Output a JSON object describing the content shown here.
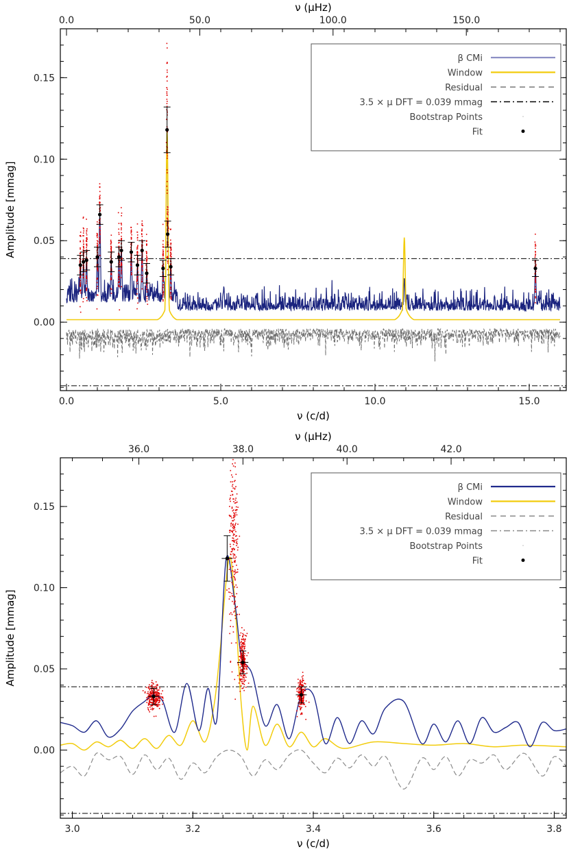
{
  "chart_data": [
    {
      "type": "line",
      "panel": "top",
      "xlabel_bottom": "ν (c/d)",
      "xlabel_top": "ν (μHz)",
      "ylabel": "Amplitude [mmag]",
      "xlim": [
        -0.2,
        16.2
      ],
      "ylim": [
        -0.042,
        0.18
      ],
      "xticks": [
        0.0,
        5.0,
        10.0,
        15.0
      ],
      "xtick_labels": [
        "0.0",
        "5.0",
        "10.0",
        "15.0"
      ],
      "top_ticks_uHz": [
        0.0,
        50.0,
        100.0,
        150.0
      ],
      "top_tick_labels": [
        "0.0",
        "50.0",
        "100.0",
        "150.0"
      ],
      "yticks": [
        0.0,
        0.05,
        0.1,
        0.15
      ],
      "ytick_labels": [
        "0.00",
        "0.05",
        "0.10",
        "0.15"
      ],
      "threshold": 0.039,
      "negative_threshold": -0.039,
      "legend": {
        "position": "top-right",
        "entries": [
          {
            "label": "β CMi",
            "style": "solid",
            "color": "#8c8fc4"
          },
          {
            "label": "Window",
            "style": "solid",
            "color": "#f2cc0c"
          },
          {
            "label": "Residual",
            "style": "dashed",
            "color": "#777777"
          },
          {
            "label": "3.5 × μ DFT = 0.039 mmag",
            "style": "dashdot",
            "color": "#000000"
          },
          {
            "label": "Bootstrap Points",
            "style": "dotted",
            "color": "#bbbbbb"
          },
          {
            "label": "Fit",
            "style": "point",
            "color": "#000000"
          }
        ]
      },
      "spectrum_peaks": [
        {
          "x": 0.45,
          "y": 0.035
        },
        {
          "x": 0.55,
          "y": 0.037
        },
        {
          "x": 0.65,
          "y": 0.038
        },
        {
          "x": 1.0,
          "y": 0.04
        },
        {
          "x": 1.08,
          "y": 0.066
        },
        {
          "x": 1.45,
          "y": 0.037
        },
        {
          "x": 1.7,
          "y": 0.04
        },
        {
          "x": 1.78,
          "y": 0.044
        },
        {
          "x": 2.1,
          "y": 0.043
        },
        {
          "x": 2.3,
          "y": 0.035
        },
        {
          "x": 2.45,
          "y": 0.044
        },
        {
          "x": 2.6,
          "y": 0.03
        },
        {
          "x": 3.13,
          "y": 0.033
        },
        {
          "x": 3.26,
          "y": 0.118
        },
        {
          "x": 3.28,
          "y": 0.054
        },
        {
          "x": 3.38,
          "y": 0.034
        },
        {
          "x": 5.1,
          "y": 0.022
        },
        {
          "x": 10.95,
          "y": 0.027
        },
        {
          "x": 15.2,
          "y": 0.033
        }
      ],
      "window_peaks": [
        {
          "x": 3.26,
          "y": 0.118
        },
        {
          "x": 10.95,
          "y": 0.052
        }
      ],
      "fit_points": [
        {
          "x": 0.45,
          "y": 0.035,
          "err": 0.006
        },
        {
          "x": 0.55,
          "y": 0.037,
          "err": 0.006
        },
        {
          "x": 0.65,
          "y": 0.038,
          "err": 0.006
        },
        {
          "x": 1.0,
          "y": 0.04,
          "err": 0.006
        },
        {
          "x": 1.08,
          "y": 0.066,
          "err": 0.006
        },
        {
          "x": 1.45,
          "y": 0.037,
          "err": 0.006
        },
        {
          "x": 1.7,
          "y": 0.04,
          "err": 0.006
        },
        {
          "x": 1.78,
          "y": 0.044,
          "err": 0.006
        },
        {
          "x": 2.1,
          "y": 0.043,
          "err": 0.006
        },
        {
          "x": 2.3,
          "y": 0.035,
          "err": 0.006
        },
        {
          "x": 2.45,
          "y": 0.044,
          "err": 0.006
        },
        {
          "x": 2.6,
          "y": 0.03,
          "err": 0.006
        },
        {
          "x": 3.13,
          "y": 0.033,
          "err": 0.005
        },
        {
          "x": 3.26,
          "y": 0.118,
          "err": 0.014
        },
        {
          "x": 3.28,
          "y": 0.054,
          "err": 0.008
        },
        {
          "x": 3.38,
          "y": 0.034,
          "err": 0.005
        },
        {
          "x": 15.2,
          "y": 0.033,
          "err": 0.005
        }
      ]
    },
    {
      "type": "line",
      "panel": "bottom",
      "xlabel_bottom": "ν (c/d)",
      "xlabel_top": "ν (μHz)",
      "ylabel": "Amplitude [mmag]",
      "xlim": [
        2.98,
        3.82
      ],
      "ylim": [
        -0.042,
        0.18
      ],
      "xticks": [
        3.0,
        3.2,
        3.4,
        3.6,
        3.8
      ],
      "xtick_labels": [
        "3.0",
        "3.2",
        "3.4",
        "3.6",
        "3.8"
      ],
      "top_ticks_uHz": [
        36.0,
        38.0,
        40.0,
        42.0
      ],
      "top_tick_labels": [
        "36.0",
        "38.0",
        "40.0",
        "42.0"
      ],
      "yticks": [
        0.0,
        0.05,
        0.1,
        0.15
      ],
      "ytick_labels": [
        "0.00",
        "0.05",
        "0.10",
        "0.15"
      ],
      "threshold": 0.039,
      "negative_threshold": -0.039,
      "legend": {
        "position": "top-right",
        "entries": [
          {
            "label": "β CMi",
            "style": "solid",
            "color": "#1f2a8c"
          },
          {
            "label": "Window",
            "style": "solid",
            "color": "#f2cc0c"
          },
          {
            "label": "Residual",
            "style": "dashed",
            "color": "#888888"
          },
          {
            "label": "3.5 × μ DFT = 0.039 mmag",
            "style": "dashdot",
            "color": "#888888"
          },
          {
            "label": "Bootstrap Points",
            "style": "dotted",
            "color": "#bbbbbb"
          },
          {
            "label": "Fit",
            "style": "point",
            "color": "#000000"
          }
        ]
      },
      "spectrum_points": [
        {
          "x": 2.98,
          "y": 0.017
        },
        {
          "x": 3.0,
          "y": 0.015
        },
        {
          "x": 3.02,
          "y": 0.011
        },
        {
          "x": 3.04,
          "y": 0.018
        },
        {
          "x": 3.06,
          "y": 0.008
        },
        {
          "x": 3.08,
          "y": 0.013
        },
        {
          "x": 3.1,
          "y": 0.024
        },
        {
          "x": 3.12,
          "y": 0.03
        },
        {
          "x": 3.135,
          "y": 0.034
        },
        {
          "x": 3.15,
          "y": 0.03
        },
        {
          "x": 3.17,
          "y": 0.011
        },
        {
          "x": 3.19,
          "y": 0.041
        },
        {
          "x": 3.21,
          "y": 0.012
        },
        {
          "x": 3.225,
          "y": 0.038
        },
        {
          "x": 3.24,
          "y": 0.019
        },
        {
          "x": 3.255,
          "y": 0.117
        },
        {
          "x": 3.27,
          "y": 0.09
        },
        {
          "x": 3.28,
          "y": 0.058
        },
        {
          "x": 3.29,
          "y": 0.052
        },
        {
          "x": 3.3,
          "y": 0.045
        },
        {
          "x": 3.32,
          "y": 0.015
        },
        {
          "x": 3.34,
          "y": 0.028
        },
        {
          "x": 3.36,
          "y": 0.007
        },
        {
          "x": 3.38,
          "y": 0.034
        },
        {
          "x": 3.4,
          "y": 0.034
        },
        {
          "x": 3.42,
          "y": 0.004
        },
        {
          "x": 3.44,
          "y": 0.02
        },
        {
          "x": 3.46,
          "y": 0.004
        },
        {
          "x": 3.48,
          "y": 0.018
        },
        {
          "x": 3.5,
          "y": 0.01
        },
        {
          "x": 3.52,
          "y": 0.026
        },
        {
          "x": 3.55,
          "y": 0.03
        },
        {
          "x": 3.58,
          "y": 0.004
        },
        {
          "x": 3.6,
          "y": 0.016
        },
        {
          "x": 3.62,
          "y": 0.005
        },
        {
          "x": 3.64,
          "y": 0.018
        },
        {
          "x": 3.66,
          "y": 0.004
        },
        {
          "x": 3.68,
          "y": 0.02
        },
        {
          "x": 3.7,
          "y": 0.011
        },
        {
          "x": 3.72,
          "y": 0.014
        },
        {
          "x": 3.74,
          "y": 0.017
        },
        {
          "x": 3.76,
          "y": 0.002
        },
        {
          "x": 3.78,
          "y": 0.017
        },
        {
          "x": 3.8,
          "y": 0.012
        },
        {
          "x": 3.82,
          "y": 0.013
        }
      ],
      "window_points": [
        {
          "x": 2.98,
          "y": 0.003
        },
        {
          "x": 3.0,
          "y": 0.004
        },
        {
          "x": 3.02,
          "y": 0.0
        },
        {
          "x": 3.04,
          "y": 0.005
        },
        {
          "x": 3.06,
          "y": 0.002
        },
        {
          "x": 3.08,
          "y": 0.006
        },
        {
          "x": 3.1,
          "y": 0.001
        },
        {
          "x": 3.12,
          "y": 0.007
        },
        {
          "x": 3.14,
          "y": 0.001
        },
        {
          "x": 3.16,
          "y": 0.009
        },
        {
          "x": 3.18,
          "y": 0.003
        },
        {
          "x": 3.2,
          "y": 0.018
        },
        {
          "x": 3.22,
          "y": 0.005
        },
        {
          "x": 3.235,
          "y": 0.027
        },
        {
          "x": 3.245,
          "y": 0.06
        },
        {
          "x": 3.26,
          "y": 0.118
        },
        {
          "x": 3.27,
          "y": 0.09
        },
        {
          "x": 3.28,
          "y": 0.03
        },
        {
          "x": 3.29,
          "y": 0.0
        },
        {
          "x": 3.3,
          "y": 0.027
        },
        {
          "x": 3.32,
          "y": 0.003
        },
        {
          "x": 3.34,
          "y": 0.016
        },
        {
          "x": 3.36,
          "y": 0.002
        },
        {
          "x": 3.38,
          "y": 0.011
        },
        {
          "x": 3.4,
          "y": 0.002
        },
        {
          "x": 3.42,
          "y": 0.007
        },
        {
          "x": 3.45,
          "y": 0.001
        },
        {
          "x": 3.5,
          "y": 0.005
        },
        {
          "x": 3.55,
          "y": 0.004
        },
        {
          "x": 3.6,
          "y": 0.003
        },
        {
          "x": 3.65,
          "y": 0.004
        },
        {
          "x": 3.7,
          "y": 0.002
        },
        {
          "x": 3.75,
          "y": 0.003
        },
        {
          "x": 3.82,
          "y": 0.002
        }
      ],
      "residual_points": [
        {
          "x": 2.98,
          "y": -0.014
        },
        {
          "x": 3.0,
          "y": -0.01
        },
        {
          "x": 3.02,
          "y": -0.016
        },
        {
          "x": 3.04,
          "y": -0.002
        },
        {
          "x": 3.06,
          "y": -0.006
        },
        {
          "x": 3.08,
          "y": -0.004
        },
        {
          "x": 3.1,
          "y": -0.015
        },
        {
          "x": 3.12,
          "y": -0.003
        },
        {
          "x": 3.14,
          "y": -0.012
        },
        {
          "x": 3.16,
          "y": -0.005
        },
        {
          "x": 3.18,
          "y": -0.018
        },
        {
          "x": 3.2,
          "y": -0.008
        },
        {
          "x": 3.22,
          "y": -0.014
        },
        {
          "x": 3.24,
          "y": -0.004
        },
        {
          "x": 3.26,
          "y": 0.0
        },
        {
          "x": 3.28,
          "y": -0.004
        },
        {
          "x": 3.3,
          "y": -0.016
        },
        {
          "x": 3.32,
          "y": -0.006
        },
        {
          "x": 3.34,
          "y": -0.012
        },
        {
          "x": 3.36,
          "y": -0.003
        },
        {
          "x": 3.38,
          "y": 0.0
        },
        {
          "x": 3.4,
          "y": -0.008
        },
        {
          "x": 3.42,
          "y": -0.014
        },
        {
          "x": 3.44,
          "y": -0.005
        },
        {
          "x": 3.46,
          "y": -0.011
        },
        {
          "x": 3.48,
          "y": -0.003
        },
        {
          "x": 3.5,
          "y": -0.01
        },
        {
          "x": 3.52,
          "y": -0.004
        },
        {
          "x": 3.55,
          "y": -0.024
        },
        {
          "x": 3.58,
          "y": -0.005
        },
        {
          "x": 3.6,
          "y": -0.012
        },
        {
          "x": 3.62,
          "y": -0.004
        },
        {
          "x": 3.64,
          "y": -0.016
        },
        {
          "x": 3.66,
          "y": -0.006
        },
        {
          "x": 3.68,
          "y": -0.008
        },
        {
          "x": 3.7,
          "y": -0.003
        },
        {
          "x": 3.72,
          "y": -0.012
        },
        {
          "x": 3.75,
          "y": -0.002
        },
        {
          "x": 3.78,
          "y": -0.016
        },
        {
          "x": 3.8,
          "y": -0.004
        },
        {
          "x": 3.82,
          "y": -0.01
        }
      ],
      "fit_points": [
        {
          "x": 3.135,
          "y": 0.033,
          "err": 0.005
        },
        {
          "x": 3.257,
          "y": 0.118,
          "err": 0.014
        },
        {
          "x": 3.283,
          "y": 0.054,
          "err": 0.007
        },
        {
          "x": 3.38,
          "y": 0.034,
          "err": 0.005
        }
      ],
      "bootstrap_clouds": [
        {
          "x": 3.135,
          "y": 0.033,
          "sx": 0.006,
          "sy": 0.004,
          "n": 260
        },
        {
          "x": 3.268,
          "y": 0.125,
          "sx": 0.004,
          "sy": 0.03,
          "n": 220
        },
        {
          "x": 3.283,
          "y": 0.055,
          "sx": 0.003,
          "sy": 0.008,
          "n": 220
        },
        {
          "x": 3.38,
          "y": 0.034,
          "sx": 0.003,
          "sy": 0.005,
          "n": 200
        }
      ]
    }
  ]
}
